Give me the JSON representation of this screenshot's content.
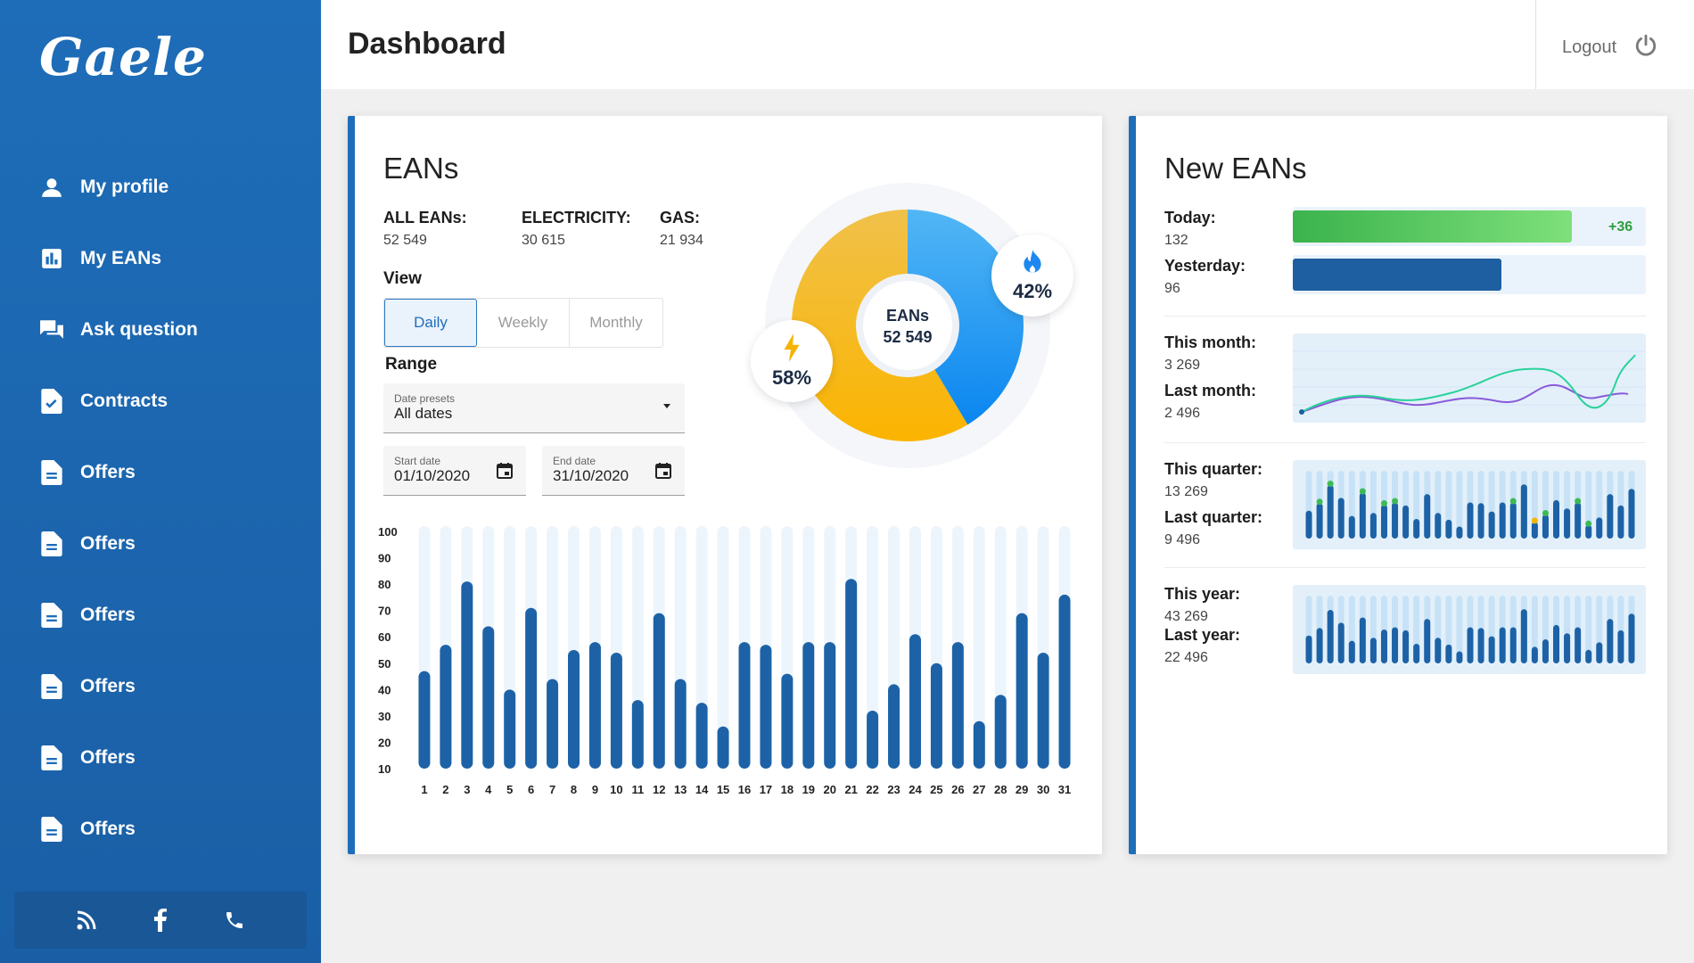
{
  "app": {
    "logo": "Gaele"
  },
  "sidebar": {
    "items": [
      {
        "label": "My profile",
        "icon": "user-icon"
      },
      {
        "label": "My EANs",
        "icon": "chart-icon"
      },
      {
        "label": "Ask question",
        "icon": "chat-icon"
      },
      {
        "label": "Contracts",
        "icon": "contract-icon"
      },
      {
        "label": "Offers",
        "icon": "document-icon"
      },
      {
        "label": "Offers",
        "icon": "document-icon"
      },
      {
        "label": "Offers",
        "icon": "document-icon"
      },
      {
        "label": "Offers",
        "icon": "document-icon"
      },
      {
        "label": "Offers",
        "icon": "document-icon"
      },
      {
        "label": "Offers",
        "icon": "document-icon"
      }
    ],
    "social": [
      "rss-icon",
      "facebook-icon",
      "phone-icon"
    ]
  },
  "header": {
    "title": "Dashboard",
    "logout": "Logout"
  },
  "eans": {
    "title": "EANs",
    "stats": [
      {
        "label": "ALL EANs:",
        "value": "52 549"
      },
      {
        "label": "ELECTRICITY:",
        "value": "30 615"
      },
      {
        "label": "GAS:",
        "value": "21 934"
      }
    ],
    "view_label": "View",
    "views": [
      "Daily",
      "Weekly",
      "Monthly"
    ],
    "active_view": "Daily",
    "range_label": "Range",
    "preset": {
      "label": "Date presets",
      "value": "All dates"
    },
    "start": {
      "label": "Start date",
      "value": "01/10/2020"
    },
    "end": {
      "label": "End date",
      "value": "31/10/2020"
    },
    "donut": {
      "center_label": "EANs",
      "center_value": "52 549",
      "gas_pct": "42%",
      "electricity_pct": "58%"
    }
  },
  "new_eans": {
    "title": "New EANs",
    "today_label": "Today:",
    "today_value": "132",
    "today_delta": "+36",
    "yesterday_label": "Yesterday:",
    "yesterday_value": "96",
    "today_fill": 0.79,
    "yesterday_fill": 0.59,
    "month_label": "This month:",
    "month_value": "3 269",
    "last_month_label": "Last month:",
    "last_month_value": "2 496",
    "quarter_label": "This quarter:",
    "quarter_value": "13 269",
    "last_quarter_label": "Last quarter:",
    "last_quarter_value": "9 496",
    "year_label": "This year:",
    "year_value": "43 269",
    "last_year_label": "Last year:",
    "last_year_value": "22 496"
  },
  "colors": {
    "primary": "#1e6db8",
    "bar": "#1d62a6",
    "gas": "#2196f3",
    "electricity": "#f5b400",
    "green": "#3cba54"
  },
  "chart_data": {
    "type": "bar",
    "categories": [
      "1",
      "2",
      "3",
      "4",
      "5",
      "6",
      "7",
      "8",
      "9",
      "10",
      "11",
      "12",
      "13",
      "14",
      "15",
      "16",
      "17",
      "18",
      "19",
      "20",
      "21",
      "22",
      "23",
      "24",
      "25",
      "26",
      "27",
      "28",
      "29",
      "30",
      "31"
    ],
    "values": [
      47,
      57,
      81,
      64,
      40,
      71,
      44,
      55,
      58,
      54,
      36,
      69,
      44,
      35,
      26,
      58,
      57,
      46,
      58,
      58,
      82,
      32,
      42,
      61,
      50,
      58,
      28,
      38,
      69,
      54,
      76
    ],
    "ylim": [
      10,
      100
    ],
    "yticks": [
      "100",
      "90",
      "80",
      "70",
      "60",
      "50",
      "40",
      "30",
      "20",
      "10"
    ]
  }
}
